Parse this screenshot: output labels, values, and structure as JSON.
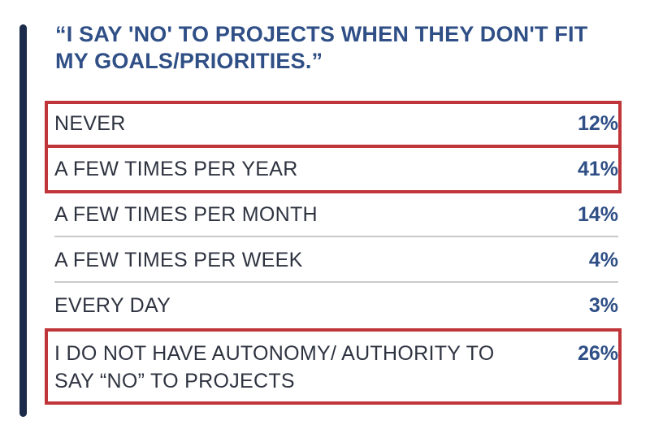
{
  "chart_data": {
    "type": "table",
    "title": "“I SAY 'NO' TO PROJECTS WHEN THEY DON'T FIT MY GOALS/PRIORITIES.”",
    "rows": [
      {
        "label": "NEVER",
        "value": "12%",
        "highlighted": true
      },
      {
        "label": "A FEW TIMES PER YEAR",
        "value": "41%",
        "highlighted": true
      },
      {
        "label": "A FEW TIMES PER MONTH",
        "value": "14%",
        "highlighted": false
      },
      {
        "label": "A FEW TIMES PER WEEK",
        "value": "4%",
        "highlighted": false
      },
      {
        "label": "EVERY DAY",
        "value": "3%",
        "highlighted": false
      },
      {
        "label": "I DO NOT HAVE AUTONOMY/ AUTHORITY TO SAY “NO” TO PROJECTS",
        "value": "26%",
        "highlighted": true
      }
    ]
  },
  "colors": {
    "title": "#2f4f86",
    "value": "#2f4f86",
    "highlight_border": "#c0353a",
    "side_bar": "#1c2b4a"
  }
}
